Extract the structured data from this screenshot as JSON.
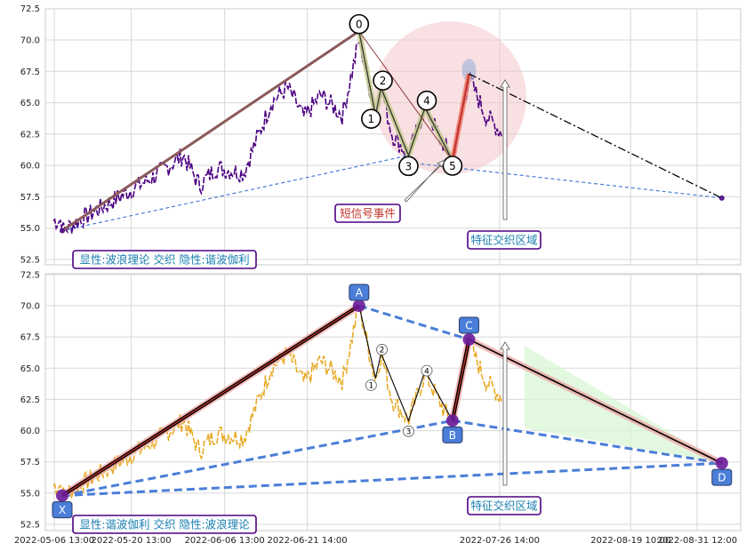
{
  "chart_data": [
    {
      "type": "line",
      "panel": "top",
      "ylim": [
        52.0,
        72.5
      ],
      "yticks": [
        "72.5",
        "70.0",
        "67.5",
        "65.0",
        "62.5",
        "60.0",
        "57.5",
        "55.0",
        "52.5"
      ],
      "price_color": "#4b0082",
      "wave_points": [
        {
          "label": "0",
          "x": "2022-07-01",
          "y": 70.7
        },
        {
          "label": "1",
          "x": "2022-07-04",
          "y": 64.0
        },
        {
          "label": "2",
          "x": "2022-07-05",
          "y": 66.2
        },
        {
          "label": "3",
          "x": "2022-07-10",
          "y": 60.8
        },
        {
          "label": "4",
          "x": "2022-07-13",
          "y": 64.6
        },
        {
          "label": "5",
          "x": "2022-07-18",
          "y": 60.4
        }
      ],
      "impulse_start": {
        "x": "2022-05-08",
        "y": 54.8
      },
      "projection_end": {
        "x": "2022-09-05",
        "y": 57.4
      },
      "peak_after": {
        "x": "2022-07-21",
        "y": 67.3
      },
      "annotations": [
        {
          "name": "short-signal",
          "text": "短信号事件"
        },
        {
          "name": "feature-zone",
          "text": "特征交织区域"
        },
        {
          "name": "legend",
          "text": "显性:波浪理论 交织 隐性:谐波伽利"
        }
      ]
    },
    {
      "type": "line",
      "panel": "bottom",
      "ylim": [
        52.0,
        72.5
      ],
      "yticks": [
        "72.5",
        "70.0",
        "67.5",
        "65.0",
        "62.5",
        "60.0",
        "57.5",
        "55.0",
        "52.5"
      ],
      "xticks": [
        "2022-05-06 13:00",
        "2022-05-20 13:00",
        "2022-06-06 13:00",
        "2022-06-21 14:00",
        "2022-07-26 14:00",
        "2022-08-19 10:00",
        "2022-08-31 12:00"
      ],
      "price_color": "#e8a820",
      "harmonic_points": [
        {
          "label": "X",
          "x": "2022-05-08",
          "y": 54.8
        },
        {
          "label": "A",
          "x": "2022-07-01",
          "y": 70.0
        },
        {
          "label": "B",
          "x": "2022-07-18",
          "y": 60.8
        },
        {
          "label": "C",
          "x": "2022-07-21",
          "y": 67.3
        },
        {
          "label": "D",
          "x": "2022-09-05",
          "y": 57.4
        }
      ],
      "minor_waves": [
        {
          "label": "1",
          "x": "2022-07-04",
          "y": 64.2
        },
        {
          "label": "2",
          "x": "2022-07-05",
          "y": 66.2
        },
        {
          "label": "3",
          "x": "2022-07-10",
          "y": 60.8
        },
        {
          "label": "4",
          "x": "2022-07-13",
          "y": 64.8
        }
      ],
      "annotations": [
        {
          "name": "feature-zone",
          "text": "特征交织区域"
        },
        {
          "name": "legend",
          "text": "显性:谐波伽利 交织 隐性:波浪理论"
        }
      ]
    }
  ]
}
